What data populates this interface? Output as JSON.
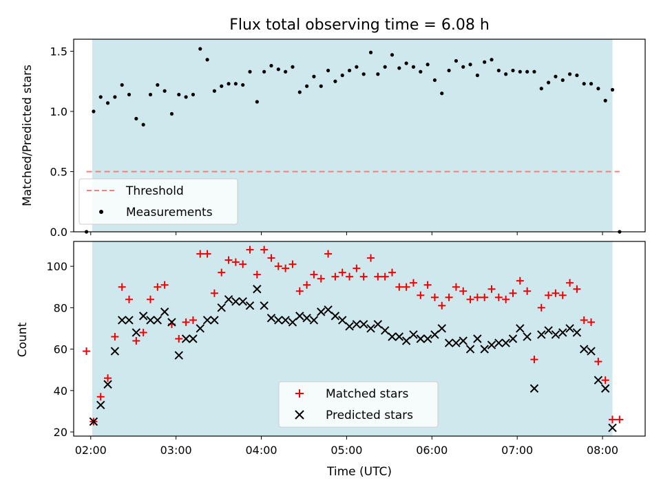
{
  "chart_data": [
    {
      "type": "scatter",
      "title": "Flux total observing time = 6.08 h",
      "xlabel": "",
      "ylabel": "Matched/Predicted stars",
      "x_units": "hours UTC",
      "xlim": [
        "01:48",
        "08:30"
      ],
      "ylim": [
        0,
        1.6
      ],
      "yticks": [
        0.0,
        0.5,
        1.0,
        1.5
      ],
      "ytick_labels": [
        "0.0",
        "0.5",
        "1.0",
        "1.5"
      ],
      "grid": false,
      "legend_position": "lower-left",
      "shaded_region": {
        "from": "02:01",
        "to": "08:07",
        "color": "#cfe8ee"
      },
      "threshold": {
        "name": "Threshold",
        "value": 0.5,
        "from": "01:57",
        "to": "08:12",
        "color": "#f08080",
        "style": "dashed"
      },
      "series": [
        {
          "name": "Measurements",
          "marker": "dot",
          "color": "#000000",
          "points": [
            [
              "01:57",
              0.0
            ],
            [
              "02:02",
              1.0
            ],
            [
              "02:07",
              1.12
            ],
            [
              "02:12",
              1.07
            ],
            [
              "02:17",
              1.12
            ],
            [
              "02:22",
              1.22
            ],
            [
              "02:27",
              1.14
            ],
            [
              "02:32",
              0.94
            ],
            [
              "02:37",
              0.89
            ],
            [
              "02:42",
              1.14
            ],
            [
              "02:47",
              1.22
            ],
            [
              "02:52",
              1.17
            ],
            [
              "02:57",
              0.98
            ],
            [
              "03:02",
              1.14
            ],
            [
              "03:07",
              1.12
            ],
            [
              "03:12",
              1.14
            ],
            [
              "03:17",
              1.52
            ],
            [
              "03:22",
              1.43
            ],
            [
              "03:27",
              1.17
            ],
            [
              "03:32",
              1.21
            ],
            [
              "03:37",
              1.23
            ],
            [
              "03:42",
              1.23
            ],
            [
              "03:47",
              1.22
            ],
            [
              "03:52",
              1.33
            ],
            [
              "03:57",
              1.08
            ],
            [
              "04:02",
              1.33
            ],
            [
              "04:07",
              1.38
            ],
            [
              "04:12",
              1.35
            ],
            [
              "04:17",
              1.33
            ],
            [
              "04:22",
              1.37
            ],
            [
              "04:27",
              1.16
            ],
            [
              "04:32",
              1.21
            ],
            [
              "04:37",
              1.29
            ],
            [
              "04:42",
              1.21
            ],
            [
              "04:47",
              1.34
            ],
            [
              "04:52",
              1.25
            ],
            [
              "04:57",
              1.3
            ],
            [
              "05:02",
              1.34
            ],
            [
              "05:07",
              1.37
            ],
            [
              "05:12",
              1.31
            ],
            [
              "05:17",
              1.49
            ],
            [
              "05:22",
              1.31
            ],
            [
              "05:27",
              1.37
            ],
            [
              "05:32",
              1.47
            ],
            [
              "05:37",
              1.36
            ],
            [
              "05:42",
              1.4
            ],
            [
              "05:47",
              1.37
            ],
            [
              "05:52",
              1.33
            ],
            [
              "05:57",
              1.39
            ],
            [
              "06:02",
              1.26
            ],
            [
              "06:07",
              1.15
            ],
            [
              "06:12",
              1.34
            ],
            [
              "06:17",
              1.42
            ],
            [
              "06:22",
              1.37
            ],
            [
              "06:27",
              1.39
            ],
            [
              "06:32",
              1.3
            ],
            [
              "06:37",
              1.41
            ],
            [
              "06:42",
              1.43
            ],
            [
              "06:47",
              1.34
            ],
            [
              "06:52",
              1.31
            ],
            [
              "06:57",
              1.34
            ],
            [
              "07:02",
              1.33
            ],
            [
              "07:07",
              1.33
            ],
            [
              "07:12",
              1.33
            ],
            [
              "07:17",
              1.19
            ],
            [
              "07:22",
              1.24
            ],
            [
              "07:27",
              1.29
            ],
            [
              "07:32",
              1.26
            ],
            [
              "07:37",
              1.31
            ],
            [
              "07:42",
              1.3
            ],
            [
              "07:47",
              1.23
            ],
            [
              "07:52",
              1.23
            ],
            [
              "07:57",
              1.19
            ],
            [
              "08:02",
              1.09
            ],
            [
              "08:07",
              1.18
            ],
            [
              "08:12",
              0.0
            ]
          ]
        }
      ]
    },
    {
      "type": "scatter",
      "title": "",
      "xlabel": "Time (UTC)",
      "ylabel": "Count",
      "x_units": "hours UTC",
      "xlim": [
        "01:48",
        "08:30"
      ],
      "ylim": [
        18,
        112
      ],
      "xticks": [
        "02:00",
        "03:00",
        "04:00",
        "05:00",
        "06:00",
        "07:00",
        "08:00"
      ],
      "yticks": [
        20,
        40,
        60,
        80,
        100
      ],
      "ytick_labels": [
        "20",
        "40",
        "60",
        "80",
        "100"
      ],
      "grid": false,
      "legend_position": "lower-center",
      "shaded_region": {
        "from": "02:01",
        "to": "08:07",
        "color": "#cfe8ee"
      },
      "series": [
        {
          "name": "Matched stars",
          "marker": "plus",
          "color": "#ee0000",
          "points": [
            [
              "01:57",
              59
            ],
            [
              "02:02",
              25
            ],
            [
              "02:07",
              37
            ],
            [
              "02:12",
              46
            ],
            [
              "02:17",
              66
            ],
            [
              "02:22",
              90
            ],
            [
              "02:27",
              84
            ],
            [
              "02:32",
              64
            ],
            [
              "02:37",
              68
            ],
            [
              "02:42",
              84
            ],
            [
              "02:47",
              90
            ],
            [
              "02:52",
              91
            ],
            [
              "02:57",
              72
            ],
            [
              "03:02",
              65
            ],
            [
              "03:07",
              73
            ],
            [
              "03:12",
              74
            ],
            [
              "03:17",
              106
            ],
            [
              "03:22",
              106
            ],
            [
              "03:27",
              87
            ],
            [
              "03:32",
              97
            ],
            [
              "03:37",
              103
            ],
            [
              "03:42",
              102
            ],
            [
              "03:47",
              101
            ],
            [
              "03:52",
              108
            ],
            [
              "03:57",
              96
            ],
            [
              "04:02",
              108
            ],
            [
              "04:07",
              104
            ],
            [
              "04:12",
              100
            ],
            [
              "04:17",
              99
            ],
            [
              "04:22",
              101
            ],
            [
              "04:27",
              88
            ],
            [
              "04:32",
              91
            ],
            [
              "04:37",
              96
            ],
            [
              "04:42",
              94
            ],
            [
              "04:47",
              106
            ],
            [
              "04:52",
              95
            ],
            [
              "04:57",
              97
            ],
            [
              "05:02",
              95
            ],
            [
              "05:07",
              99
            ],
            [
              "05:12",
              95
            ],
            [
              "05:17",
              104
            ],
            [
              "05:22",
              95
            ],
            [
              "05:27",
              95
            ],
            [
              "05:32",
              97
            ],
            [
              "05:37",
              90
            ],
            [
              "05:42",
              90
            ],
            [
              "05:47",
              92
            ],
            [
              "05:52",
              86
            ],
            [
              "05:57",
              91
            ],
            [
              "06:02",
              85
            ],
            [
              "06:07",
              81
            ],
            [
              "06:12",
              85
            ],
            [
              "06:17",
              90
            ],
            [
              "06:22",
              88
            ],
            [
              "06:27",
              84
            ],
            [
              "06:32",
              85
            ],
            [
              "06:37",
              85
            ],
            [
              "06:42",
              89
            ],
            [
              "06:47",
              85
            ],
            [
              "06:52",
              84
            ],
            [
              "06:57",
              87
            ],
            [
              "07:02",
              93
            ],
            [
              "07:07",
              88
            ],
            [
              "07:12",
              55
            ],
            [
              "07:17",
              80
            ],
            [
              "07:22",
              86
            ],
            [
              "07:27",
              87
            ],
            [
              "07:32",
              86
            ],
            [
              "07:37",
              92
            ],
            [
              "07:42",
              89
            ],
            [
              "07:47",
              74
            ],
            [
              "07:52",
              73
            ],
            [
              "07:57",
              54
            ],
            [
              "08:02",
              45
            ],
            [
              "08:07",
              26
            ],
            [
              "08:12",
              26
            ]
          ]
        },
        {
          "name": "Predicted stars",
          "marker": "x",
          "color": "#000000",
          "points": [
            [
              "02:02",
              25
            ],
            [
              "02:07",
              33
            ],
            [
              "02:12",
              43
            ],
            [
              "02:17",
              59
            ],
            [
              "02:22",
              74
            ],
            [
              "02:27",
              74
            ],
            [
              "02:32",
              68
            ],
            [
              "02:37",
              76
            ],
            [
              "02:42",
              74
            ],
            [
              "02:47",
              74
            ],
            [
              "02:52",
              78
            ],
            [
              "02:57",
              73
            ],
            [
              "03:02",
              57
            ],
            [
              "03:07",
              65
            ],
            [
              "03:12",
              65
            ],
            [
              "03:17",
              70
            ],
            [
              "03:22",
              74
            ],
            [
              "03:27",
              74
            ],
            [
              "03:32",
              80
            ],
            [
              "03:37",
              84
            ],
            [
              "03:42",
              83
            ],
            [
              "03:47",
              83
            ],
            [
              "03:52",
              81
            ],
            [
              "03:57",
              89
            ],
            [
              "04:02",
              81
            ],
            [
              "04:07",
              75
            ],
            [
              "04:12",
              74
            ],
            [
              "04:17",
              74
            ],
            [
              "04:22",
              73
            ],
            [
              "04:27",
              76
            ],
            [
              "04:32",
              75
            ],
            [
              "04:37",
              74
            ],
            [
              "04:42",
              78
            ],
            [
              "04:47",
              79
            ],
            [
              "04:52",
              76
            ],
            [
              "04:57",
              74
            ],
            [
              "05:02",
              71
            ],
            [
              "05:07",
              72
            ],
            [
              "05:12",
              72
            ],
            [
              "05:17",
              70
            ],
            [
              "05:22",
              72
            ],
            [
              "05:27",
              69
            ],
            [
              "05:32",
              66
            ],
            [
              "05:37",
              66
            ],
            [
              "05:42",
              64
            ],
            [
              "05:47",
              67
            ],
            [
              "05:52",
              65
            ],
            [
              "05:57",
              65
            ],
            [
              "06:02",
              67
            ],
            [
              "06:07",
              70
            ],
            [
              "06:12",
              63
            ],
            [
              "06:17",
              63
            ],
            [
              "06:22",
              64
            ],
            [
              "06:27",
              60
            ],
            [
              "06:32",
              65
            ],
            [
              "06:37",
              60
            ],
            [
              "06:42",
              62
            ],
            [
              "06:47",
              63
            ],
            [
              "06:52",
              63
            ],
            [
              "06:57",
              65
            ],
            [
              "07:02",
              70
            ],
            [
              "07:07",
              66
            ],
            [
              "07:12",
              41
            ],
            [
              "07:17",
              67
            ],
            [
              "07:22",
              69
            ],
            [
              "07:27",
              67
            ],
            [
              "07:32",
              68
            ],
            [
              "07:37",
              70
            ],
            [
              "07:42",
              68
            ],
            [
              "07:47",
              60
            ],
            [
              "07:52",
              59
            ],
            [
              "07:57",
              45
            ],
            [
              "08:02",
              41
            ],
            [
              "08:07",
              22
            ]
          ]
        }
      ]
    }
  ]
}
